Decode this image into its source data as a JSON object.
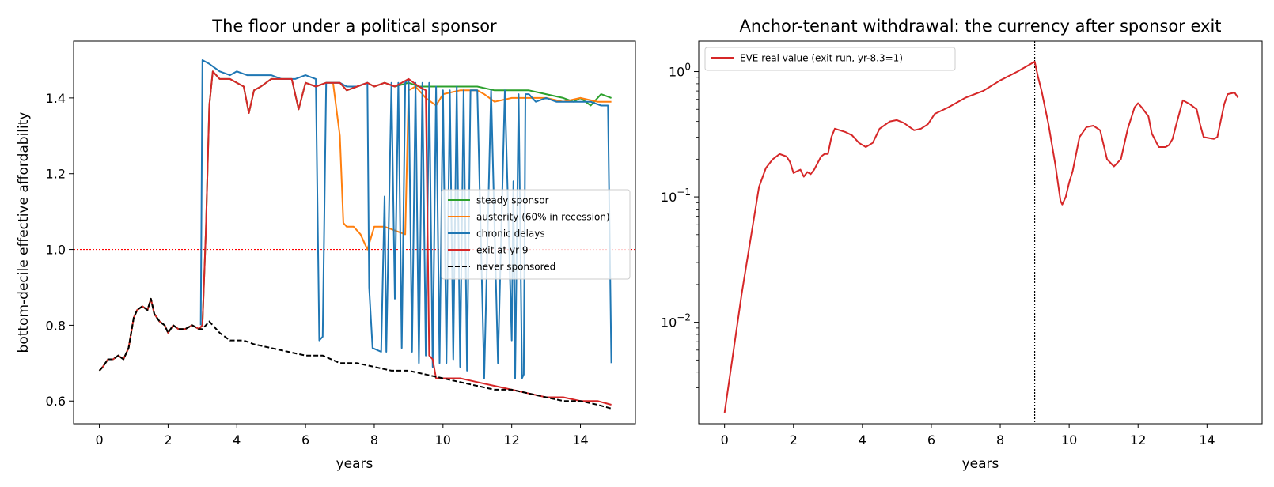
{
  "figure": {
    "background": "#ffffff"
  },
  "chart_data": [
    {
      "type": "line",
      "title": "The floor under a political sponsor",
      "xlabel": "years",
      "ylabel": "bottom-decile effective affordability",
      "xlim": [
        -0.75,
        15.6
      ],
      "ylim": [
        0.54,
        1.55
      ],
      "x_ticks": [
        0,
        2,
        4,
        6,
        8,
        10,
        12,
        14
      ],
      "y_ticks": [
        0.6,
        0.8,
        1.0,
        1.2,
        1.4
      ],
      "y_tick_labels": [
        "0.6",
        "0.8",
        "1.0",
        "1.2",
        "1.4"
      ],
      "grid": false,
      "legend_position": "center-right",
      "reference_line": {
        "y": 1.0,
        "color": "#ff0000",
        "style": "dotted"
      },
      "series": [
        {
          "name": "steady sponsor",
          "color": "#2ca02c",
          "style": "solid",
          "x": [
            0,
            0.1,
            0.25,
            0.4,
            0.55,
            0.7,
            0.85,
            1.0,
            1.1,
            1.25,
            1.4,
            1.5,
            1.6,
            1.75,
            1.9,
            2.0,
            2.15,
            2.3,
            2.5,
            2.7,
            2.9,
            3.0,
            3.1,
            3.2,
            3.3,
            3.5,
            3.8,
            4.0,
            4.2,
            4.35,
            4.5,
            4.7,
            5.0,
            5.3,
            5.6,
            5.8,
            6.0,
            6.3,
            6.6,
            6.8,
            7.0,
            7.2,
            7.5,
            7.8,
            8.0,
            8.3,
            8.6,
            9.0,
            9.3,
            9.6,
            10.0,
            10.5,
            11.0,
            11.5,
            12.0,
            12.5,
            13.0,
            13.5,
            13.8,
            14.0,
            14.3,
            14.6,
            14.9
          ],
          "y": [
            0.68,
            0.69,
            0.71,
            0.71,
            0.72,
            0.71,
            0.74,
            0.82,
            0.84,
            0.85,
            0.84,
            0.87,
            0.83,
            0.81,
            0.8,
            0.78,
            0.8,
            0.79,
            0.79,
            0.8,
            0.79,
            0.8,
            1.05,
            1.38,
            1.47,
            1.45,
            1.45,
            1.44,
            1.43,
            1.36,
            1.42,
            1.43,
            1.45,
            1.45,
            1.45,
            1.37,
            1.44,
            1.43,
            1.44,
            1.44,
            1.44,
            1.42,
            1.43,
            1.44,
            1.43,
            1.44,
            1.43,
            1.44,
            1.43,
            1.43,
            1.43,
            1.43,
            1.43,
            1.42,
            1.42,
            1.42,
            1.41,
            1.4,
            1.39,
            1.4,
            1.38,
            1.41,
            1.4
          ]
        },
        {
          "name": "austerity (60% in recession)",
          "color": "#ff7f0e",
          "style": "solid",
          "x": [
            6.8,
            7.0,
            7.1,
            7.2,
            7.4,
            7.6,
            7.8,
            8.0,
            8.3,
            8.6,
            8.9,
            9.0,
            9.2,
            9.4,
            9.5,
            9.8,
            10.0,
            10.5,
            11.0,
            11.2,
            11.5,
            12.0,
            12.5,
            13.0,
            13.5,
            14.0,
            14.5,
            14.9
          ],
          "y": [
            1.44,
            1.3,
            1.07,
            1.06,
            1.06,
            1.04,
            1.0,
            1.06,
            1.06,
            1.05,
            1.04,
            1.42,
            1.43,
            1.41,
            1.4,
            1.38,
            1.41,
            1.42,
            1.42,
            1.41,
            1.39,
            1.4,
            1.4,
            1.4,
            1.39,
            1.4,
            1.39,
            1.39
          ]
        },
        {
          "name": "chronic delays",
          "color": "#1f77b4",
          "style": "solid",
          "x": [
            2.95,
            3.0,
            3.2,
            3.5,
            3.8,
            4.0,
            4.3,
            4.6,
            5.0,
            5.3,
            5.7,
            6.0,
            6.3,
            6.4,
            6.5,
            6.6,
            6.8,
            7.0,
            7.2,
            7.5,
            7.8,
            7.85,
            7.95,
            8.2,
            8.3,
            8.35,
            8.5,
            8.6,
            8.7,
            8.8,
            8.9,
            9.0,
            9.1,
            9.2,
            9.3,
            9.4,
            9.5,
            9.6,
            9.7,
            9.8,
            9.9,
            10.0,
            10.1,
            10.2,
            10.3,
            10.4,
            10.5,
            10.6,
            10.7,
            10.8,
            11.0,
            11.2,
            11.4,
            11.6,
            11.8,
            12.0,
            12.05,
            12.1,
            12.2,
            12.3,
            12.35,
            12.4,
            12.5,
            12.6,
            12.7,
            13.0,
            13.3,
            13.6,
            13.8,
            14.0,
            14.3,
            14.6,
            14.8,
            14.9
          ],
          "y": [
            0.8,
            1.5,
            1.49,
            1.47,
            1.46,
            1.47,
            1.46,
            1.46,
            1.46,
            1.45,
            1.45,
            1.46,
            1.45,
            0.76,
            0.77,
            1.44,
            1.44,
            1.44,
            1.43,
            1.43,
            1.44,
            0.9,
            0.74,
            0.73,
            1.14,
            0.73,
            1.44,
            0.87,
            1.44,
            0.74,
            1.44,
            1.45,
            0.73,
            1.44,
            0.7,
            1.44,
            0.72,
            1.44,
            0.69,
            1.43,
            0.7,
            1.42,
            0.7,
            1.42,
            0.71,
            1.43,
            0.69,
            1.42,
            0.68,
            1.42,
            1.42,
            0.66,
            1.42,
            0.7,
            1.42,
            0.76,
            1.18,
            0.66,
            1.41,
            0.66,
            0.67,
            1.41,
            1.41,
            1.4,
            1.39,
            1.4,
            1.39,
            1.39,
            1.39,
            1.39,
            1.39,
            1.38,
            1.38,
            0.7
          ]
        },
        {
          "name": "exit at yr 9",
          "color": "#d62728",
          "style": "solid",
          "x": [
            0,
            0.1,
            0.25,
            0.4,
            0.55,
            0.7,
            0.85,
            1.0,
            1.1,
            1.25,
            1.4,
            1.5,
            1.6,
            1.75,
            1.9,
            2.0,
            2.15,
            2.3,
            2.5,
            2.7,
            2.9,
            3.0,
            3.1,
            3.2,
            3.3,
            3.5,
            3.8,
            4.0,
            4.2,
            4.35,
            4.5,
            4.7,
            5.0,
            5.3,
            5.6,
            5.8,
            6.0,
            6.3,
            6.6,
            6.8,
            7.0,
            7.2,
            7.5,
            7.8,
            8.0,
            8.3,
            8.6,
            9.0,
            9.3,
            9.5,
            9.6,
            9.7,
            9.8,
            10.0,
            10.5,
            11.0,
            11.5,
            12.0,
            12.5,
            13.0,
            13.5,
            14.0,
            14.5,
            14.9
          ],
          "y": [
            0.68,
            0.69,
            0.71,
            0.71,
            0.72,
            0.71,
            0.74,
            0.82,
            0.84,
            0.85,
            0.84,
            0.87,
            0.83,
            0.81,
            0.8,
            0.78,
            0.8,
            0.79,
            0.79,
            0.8,
            0.79,
            0.8,
            1.05,
            1.38,
            1.47,
            1.45,
            1.45,
            1.44,
            1.43,
            1.36,
            1.42,
            1.43,
            1.45,
            1.45,
            1.45,
            1.37,
            1.44,
            1.43,
            1.44,
            1.44,
            1.44,
            1.42,
            1.43,
            1.44,
            1.43,
            1.44,
            1.43,
            1.45,
            1.43,
            1.42,
            0.72,
            0.71,
            0.66,
            0.66,
            0.66,
            0.65,
            0.64,
            0.63,
            0.62,
            0.61,
            0.61,
            0.6,
            0.6,
            0.59
          ]
        },
        {
          "name": "never sponsored",
          "color": "#000000",
          "style": "dashed",
          "x": [
            0,
            0.1,
            0.25,
            0.4,
            0.55,
            0.7,
            0.85,
            1.0,
            1.1,
            1.25,
            1.4,
            1.5,
            1.6,
            1.75,
            1.9,
            2.0,
            2.15,
            2.3,
            2.5,
            2.7,
            2.9,
            3.0,
            3.2,
            3.5,
            3.8,
            4.0,
            4.2,
            4.5,
            5.0,
            5.5,
            6.0,
            6.5,
            7.0,
            7.5,
            8.0,
            8.5,
            9.0,
            9.5,
            10.0,
            10.5,
            11.0,
            11.5,
            12.0,
            12.5,
            13.0,
            13.5,
            14.0,
            14.5,
            14.9
          ],
          "y": [
            0.68,
            0.69,
            0.71,
            0.71,
            0.72,
            0.71,
            0.74,
            0.82,
            0.84,
            0.85,
            0.84,
            0.87,
            0.83,
            0.81,
            0.8,
            0.78,
            0.8,
            0.79,
            0.79,
            0.8,
            0.79,
            0.79,
            0.81,
            0.78,
            0.76,
            0.76,
            0.76,
            0.75,
            0.74,
            0.73,
            0.72,
            0.72,
            0.7,
            0.7,
            0.69,
            0.68,
            0.68,
            0.67,
            0.66,
            0.65,
            0.64,
            0.63,
            0.63,
            0.62,
            0.61,
            0.6,
            0.6,
            0.59,
            0.58
          ]
        }
      ]
    },
    {
      "type": "line",
      "title": "Anchor-tenant withdrawal: the currency after sponsor exit",
      "xlabel": "years",
      "ylabel": "",
      "yscale": "log",
      "xlim": [
        -0.75,
        15.6
      ],
      "ylim": [
        0.00155,
        1.75
      ],
      "x_ticks": [
        0,
        2,
        4,
        6,
        8,
        10,
        12,
        14
      ],
      "y_ticks": [
        0.01,
        0.1,
        1
      ],
      "y_tick_labels": [
        {
          "base": "10",
          "exp": "−2"
        },
        {
          "base": "10",
          "exp": "−1"
        },
        {
          "base": "10",
          "exp": "0"
        }
      ],
      "grid": false,
      "legend_position": "top-left",
      "reference_line": {
        "x": 9,
        "color": "#000000",
        "style": "dotted"
      },
      "series": [
        {
          "name": "EVE real value (exit run, yr-8.3=1)",
          "color": "#d62728",
          "style": "solid",
          "x": [
            0,
            0.5,
            1.0,
            1.2,
            1.4,
            1.6,
            1.8,
            1.9,
            2.0,
            2.1,
            2.2,
            2.3,
            2.4,
            2.5,
            2.6,
            2.8,
            2.9,
            3.0,
            3.1,
            3.2,
            3.5,
            3.7,
            3.9,
            4.1,
            4.3,
            4.5,
            4.8,
            5.0,
            5.2,
            5.5,
            5.7,
            5.9,
            6.1,
            6.5,
            7.0,
            7.5,
            8.0,
            8.5,
            9.0,
            9.1,
            9.2,
            9.4,
            9.6,
            9.75,
            9.8,
            9.9,
            10.0,
            10.1,
            10.3,
            10.5,
            10.7,
            10.9,
            11.0,
            11.1,
            11.3,
            11.5,
            11.7,
            11.9,
            12.0,
            12.1,
            12.3,
            12.4,
            12.6,
            12.8,
            12.9,
            13.0,
            13.1,
            13.3,
            13.5,
            13.7,
            13.8,
            13.9,
            14.2,
            14.3,
            14.5,
            14.6,
            14.8,
            14.9
          ],
          "y": [
            0.0019,
            0.017,
            0.12,
            0.17,
            0.2,
            0.22,
            0.21,
            0.19,
            0.155,
            0.16,
            0.165,
            0.145,
            0.158,
            0.152,
            0.165,
            0.21,
            0.22,
            0.22,
            0.3,
            0.35,
            0.33,
            0.31,
            0.27,
            0.25,
            0.27,
            0.35,
            0.4,
            0.41,
            0.39,
            0.34,
            0.35,
            0.38,
            0.46,
            0.52,
            0.62,
            0.7,
            0.85,
            1.0,
            1.2,
            0.9,
            0.7,
            0.38,
            0.18,
            0.093,
            0.087,
            0.1,
            0.13,
            0.16,
            0.3,
            0.36,
            0.37,
            0.34,
            0.26,
            0.2,
            0.175,
            0.2,
            0.35,
            0.52,
            0.56,
            0.52,
            0.44,
            0.32,
            0.25,
            0.25,
            0.26,
            0.29,
            0.37,
            0.59,
            0.55,
            0.5,
            0.38,
            0.3,
            0.29,
            0.3,
            0.55,
            0.66,
            0.68,
            0.62
          ]
        }
      ]
    }
  ]
}
